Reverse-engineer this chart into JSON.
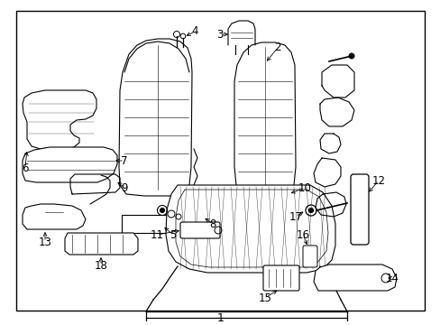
{
  "title": "1",
  "background_color": "#ffffff",
  "line_color": "#000000",
  "label_color": "#000000",
  "border_lw": 1.2,
  "figsize": [
    4.89,
    3.6
  ],
  "dpi": 100,
  "font_size_labels": 8.5,
  "font_size_title": 9
}
